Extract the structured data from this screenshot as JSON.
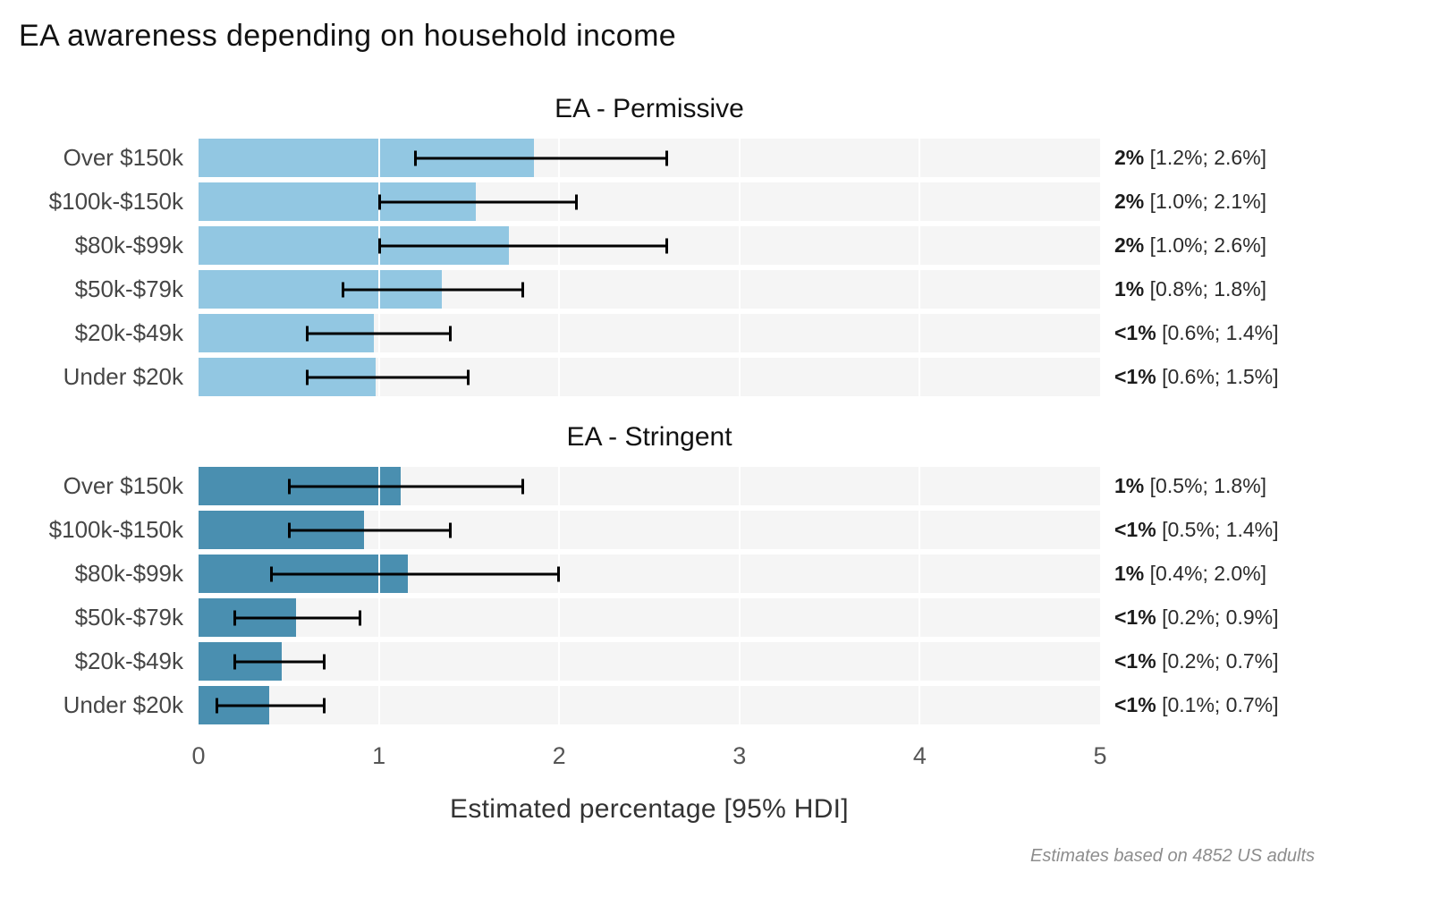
{
  "title": "EA awareness depending on household income",
  "caption": "Estimates based on 4852 US adults",
  "chart_data": {
    "type": "bar",
    "orientation": "horizontal",
    "xlabel": "Estimated percentage [95% HDI]",
    "xlim": [
      0,
      5
    ],
    "x_ticks": [
      "0",
      "1",
      "2",
      "3",
      "4",
      "5"
    ],
    "grid": true,
    "legend": "none",
    "colors": {
      "row_background": "#f5f5f5",
      "gridline": "#ffffff",
      "error_bar": "#000000",
      "permissive_bar": "#92c7e2",
      "stringent_bar": "#4a8fb0"
    },
    "categories": [
      "Over $150k",
      "$100k-$150k",
      "$80k-$99k",
      "$50k-$79k",
      "$20k-$49k",
      "Under $20k"
    ],
    "panels": [
      {
        "title": "EA - Permissive",
        "bar_color": "#92c7e2",
        "bars": [
          {
            "category": "Over $150k",
            "value": 1.86,
            "hdi": [
              1.2,
              2.6
            ],
            "label": "2%",
            "interval_label": "[1.2%; 2.6%]"
          },
          {
            "category": "$100k-$150k",
            "value": 1.54,
            "hdi": [
              1.0,
              2.1
            ],
            "label": "2%",
            "interval_label": "[1.0%; 2.1%]"
          },
          {
            "category": "$80k-$99k",
            "value": 1.72,
            "hdi": [
              1.0,
              2.6
            ],
            "label": "2%",
            "interval_label": "[1.0%; 2.6%]"
          },
          {
            "category": "$50k-$79k",
            "value": 1.35,
            "hdi": [
              0.8,
              1.8
            ],
            "label": "1%",
            "interval_label": "[0.8%; 1.8%]"
          },
          {
            "category": "$20k-$49k",
            "value": 0.97,
            "hdi": [
              0.6,
              1.4
            ],
            "label": "<1%",
            "interval_label": "[0.6%; 1.4%]"
          },
          {
            "category": "Under $20k",
            "value": 0.98,
            "hdi": [
              0.6,
              1.5
            ],
            "label": "<1%",
            "interval_label": "[0.6%; 1.5%]"
          }
        ]
      },
      {
        "title": "EA - Stringent",
        "bar_color": "#4a8fb0",
        "bars": [
          {
            "category": "Over $150k",
            "value": 1.12,
            "hdi": [
              0.5,
              1.8
            ],
            "label": "1%",
            "interval_label": "[0.5%; 1.8%]"
          },
          {
            "category": "$100k-$150k",
            "value": 0.92,
            "hdi": [
              0.5,
              1.4
            ],
            "label": "<1%",
            "interval_label": "[0.5%; 1.4%]"
          },
          {
            "category": "$80k-$99k",
            "value": 1.16,
            "hdi": [
              0.4,
              2.0
            ],
            "label": "1%",
            "interval_label": "[0.4%; 2.0%]"
          },
          {
            "category": "$50k-$79k",
            "value": 0.54,
            "hdi": [
              0.2,
              0.9
            ],
            "label": "<1%",
            "interval_label": "[0.2%; 0.9%]"
          },
          {
            "category": "$20k-$49k",
            "value": 0.46,
            "hdi": [
              0.2,
              0.7
            ],
            "label": "<1%",
            "interval_label": "[0.2%; 0.7%]"
          },
          {
            "category": "Under $20k",
            "value": 0.39,
            "hdi": [
              0.1,
              0.7
            ],
            "label": "<1%",
            "interval_label": "[0.1%; 0.7%]"
          }
        ]
      }
    ]
  }
}
